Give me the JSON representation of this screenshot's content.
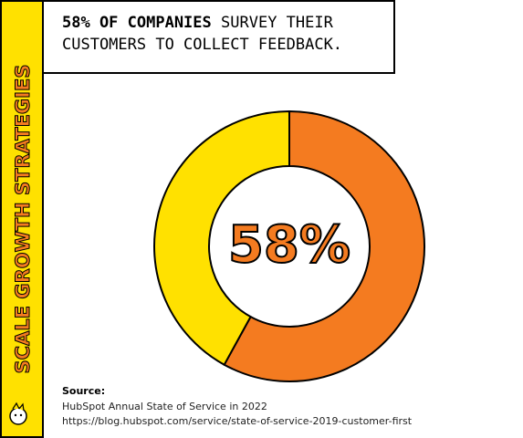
{
  "side_banner": "SCALE GROWTH STRATEGIES",
  "chart_data": {
    "type": "donut",
    "title": "58% OF COMPANIES",
    "subtitle": "SURVEY THEIR",
    "title_line2": "CUSTOMERS TO COLLECT FEEDBACK.",
    "values": [
      58,
      42
    ],
    "value_labels": [
      "58%",
      null
    ],
    "colors": [
      "#f47b20",
      "#ffe100"
    ]
  },
  "source": {
    "heading": "Source:",
    "lines": [
      "HubSpot Annual State of Service in 2022",
      "https://blog.hubspot.com/service/state-of-service-2019-customer-first"
    ]
  }
}
